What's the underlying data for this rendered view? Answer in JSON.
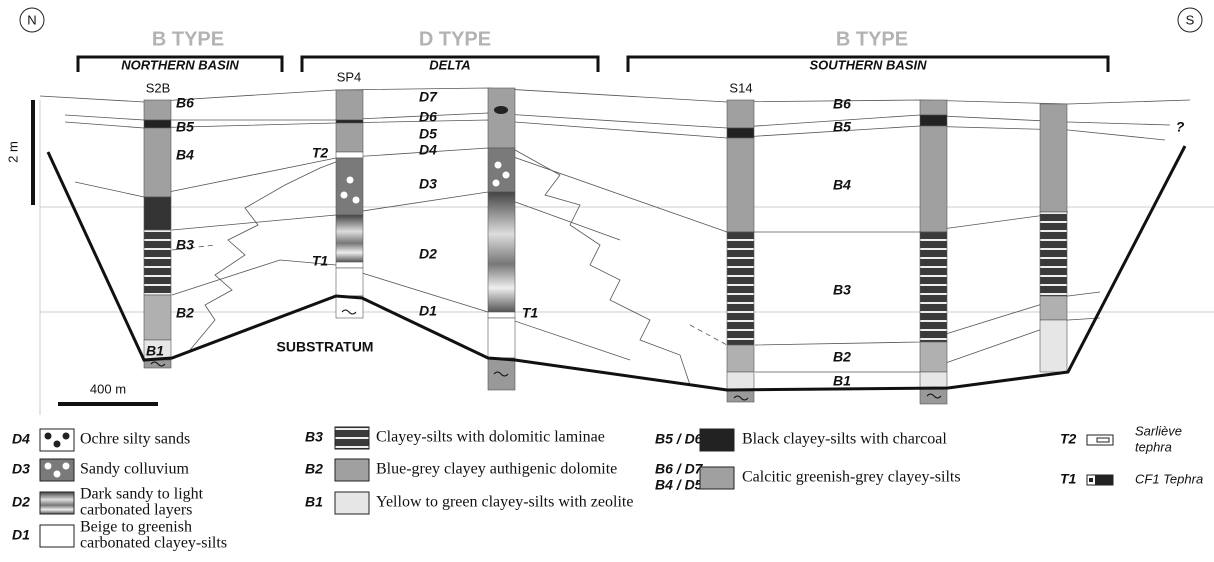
{
  "orientation": {
    "north": "N",
    "south": "S"
  },
  "groups": [
    {
      "type": "B TYPE",
      "basin": "NORTHERN BASIN"
    },
    {
      "type": "D TYPE",
      "basin": "DELTA"
    },
    {
      "type": "B TYPE",
      "basin": "SOUTHERN BASIN"
    }
  ],
  "cores": [
    "S2B",
    "SP4",
    "S14"
  ],
  "scale": {
    "vertical": "2 m",
    "horizontal": "400 m"
  },
  "section_labels": [
    "B6",
    "B5",
    "B4",
    "B3",
    "B2",
    "B1",
    "T2",
    "T1",
    "D7",
    "D6",
    "D5",
    "D4",
    "D3",
    "D2",
    "D1",
    "T1",
    "B6",
    "B5",
    "B4",
    "B3",
    "B2",
    "B1",
    "?"
  ],
  "substratum": "SUBSTRATUM",
  "legend": [
    {
      "code": [
        "D4"
      ],
      "label": [
        "Ochre silty sands"
      ]
    },
    {
      "code": [
        "D3"
      ],
      "label": [
        "Sandy colluvium"
      ]
    },
    {
      "code": [
        "D2"
      ],
      "label": [
        "Dark sandy to light",
        "carbonated layers"
      ]
    },
    {
      "code": [
        "D1"
      ],
      "label": [
        "Beige to greenish",
        "carbonated clayey-silts"
      ]
    },
    {
      "code": [
        "B3"
      ],
      "label": [
        "Clayey-silts with dolomitic laminae"
      ]
    },
    {
      "code": [
        "B2"
      ],
      "label": [
        "Blue-grey clayey authigenic dolomite"
      ]
    },
    {
      "code": [
        "B1"
      ],
      "label": [
        "Yellow to green clayey-silts with zeolite"
      ]
    },
    {
      "code": [
        "B5 / D6"
      ],
      "label": [
        "Black clayey-silts with charcoal"
      ]
    },
    {
      "code": [
        "B6 / D7",
        "B4 / D5"
      ],
      "label": [
        "Calcitic greenish-grey clayey-silts"
      ]
    },
    {
      "code": [
        "T2"
      ],
      "label": [
        "Sarliève",
        "tephra"
      ]
    },
    {
      "code": [
        "T1"
      ],
      "label": [
        "CF1 Tephra"
      ]
    }
  ]
}
